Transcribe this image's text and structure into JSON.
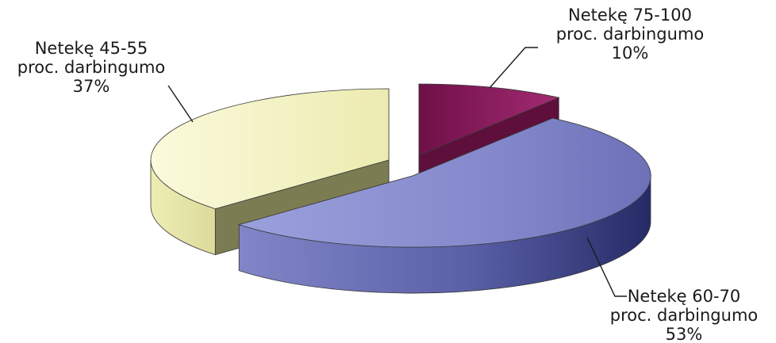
{
  "chart_data": {
    "type": "pie",
    "style": "3d-exploded",
    "slices": [
      {
        "label_lines": [
          "Netekę 75-100",
          "proc. darbingumo",
          "10%"
        ],
        "value": 10,
        "color": "#8c1d5e",
        "side": "#5e0f3c"
      },
      {
        "label_lines": [
          "Netekę 60-70",
          "proc. darbingumo",
          "53%"
        ],
        "value": 53,
        "color": "#8a8fcf",
        "side": "#3d4385"
      },
      {
        "label_lines": [
          "Netekę 45-55",
          "proc. darbingumo",
          "37%"
        ],
        "value": 37,
        "color": "#f4f3c1",
        "side": "#7b7c52"
      }
    ]
  }
}
